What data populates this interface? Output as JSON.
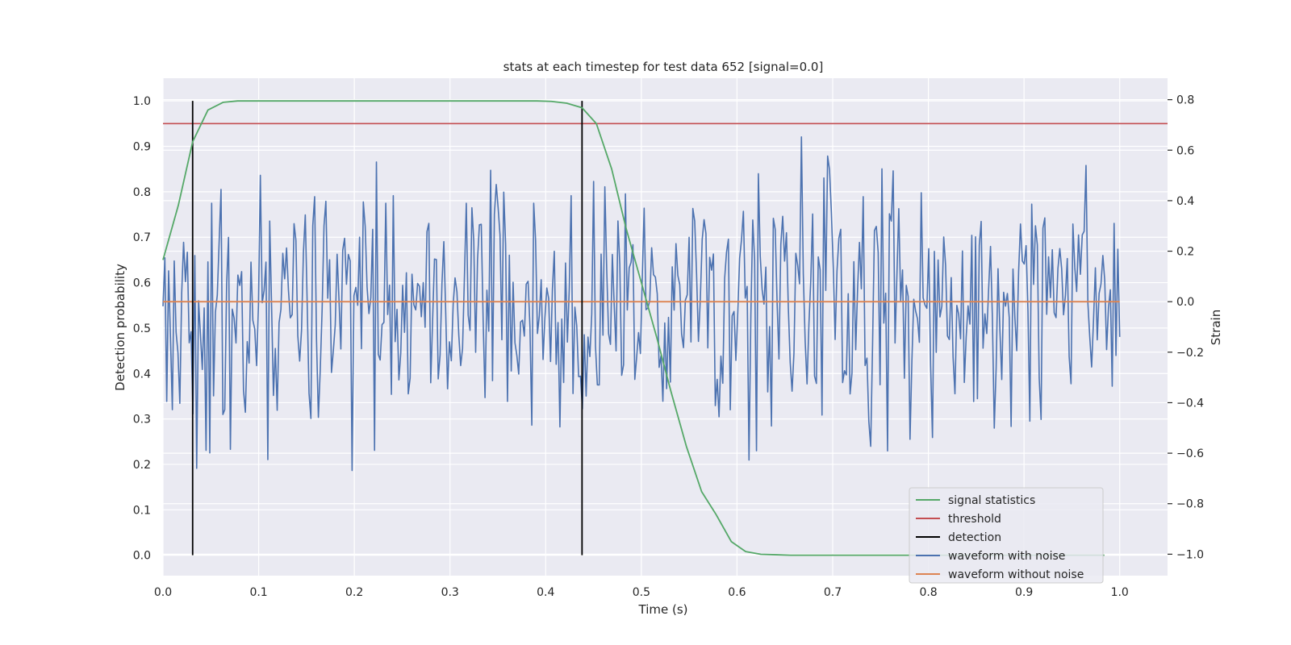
{
  "chart_data": {
    "type": "line",
    "title": "stats at each timestep for test data 652 [signal=0.0]",
    "xlabel": "Time (s)",
    "ylabel_left": "Detection probability",
    "ylabel_right": "Strain",
    "xlim": [
      0.0,
      1.05
    ],
    "ylim_left": [
      -0.045,
      1.05
    ],
    "ylim_right": [
      -1.085,
      0.885
    ],
    "x_ticks": [
      "0.0",
      "0.1",
      "0.2",
      "0.3",
      "0.4",
      "0.5",
      "0.6",
      "0.7",
      "0.8",
      "0.9",
      "1.0"
    ],
    "y_left_ticks": [
      "0.0",
      "0.1",
      "0.2",
      "0.3",
      "0.4",
      "0.5",
      "0.6",
      "0.7",
      "0.8",
      "0.9",
      "1.0"
    ],
    "y_right_ticks": [
      "−1.0",
      "−0.8",
      "−0.6",
      "−0.4",
      "−0.2",
      "0.0",
      "0.2",
      "0.4",
      "0.6",
      "0.8"
    ],
    "grid": true,
    "legend_position": "lower-right",
    "colors": {
      "background": "#eaeaf2",
      "grid": "#ffffff",
      "signal_statistics": "#55a868",
      "threshold": "#c44e52",
      "detection": "#000000",
      "waveform_with_noise": "#4c72b0",
      "waveform_without_noise": "#dd8452"
    },
    "series": [
      {
        "name": "signal statistics",
        "axis": "left",
        "x": [
          0.0,
          0.016,
          0.031,
          0.047,
          0.063,
          0.078,
          0.094,
          0.109,
          0.125,
          0.141,
          0.156,
          0.172,
          0.188,
          0.203,
          0.219,
          0.234,
          0.25,
          0.266,
          0.281,
          0.297,
          0.313,
          0.328,
          0.344,
          0.359,
          0.375,
          0.391,
          0.406,
          0.422,
          0.438,
          0.453,
          0.469,
          0.484,
          0.5,
          0.516,
          0.531,
          0.547,
          0.563,
          0.578,
          0.594,
          0.609,
          0.625,
          0.641,
          0.656,
          0.672,
          0.688,
          0.703,
          0.719,
          0.734,
          0.75,
          0.766,
          0.781,
          0.797,
          0.813,
          0.828,
          0.844,
          0.859,
          0.875,
          0.891,
          0.906,
          0.922,
          0.938,
          0.953,
          0.969,
          0.984
        ],
        "values": [
          0.65,
          0.77,
          0.91,
          0.98,
          0.997,
          1.0,
          1.0,
          1.0,
          1.0,
          1.0,
          1.0,
          1.0,
          1.0,
          1.0,
          1.0,
          1.0,
          1.0,
          1.0,
          1.0,
          1.0,
          1.0,
          1.0,
          1.0,
          1.0,
          1.0,
          1.0,
          0.999,
          0.995,
          0.985,
          0.95,
          0.85,
          0.72,
          0.6,
          0.48,
          0.36,
          0.24,
          0.14,
          0.09,
          0.03,
          0.008,
          0.002,
          0.001,
          0.0,
          0.0,
          0.0,
          0.0,
          0.0,
          0.0,
          0.0,
          0.0,
          0.0,
          0.0,
          0.0,
          0.0,
          0.0,
          0.0,
          0.0,
          0.0,
          0.0,
          0.0,
          0.0,
          0.0,
          0.0,
          0.0
        ]
      },
      {
        "name": "threshold",
        "axis": "left",
        "x": [
          0.0,
          1.05
        ],
        "values": [
          0.95,
          0.95
        ]
      },
      {
        "name": "detection",
        "axis": "left",
        "x": [
          0.031,
          0.438
        ],
        "y_range": [
          0.0,
          1.0
        ]
      },
      {
        "name": "waveform with noise",
        "axis": "right",
        "x_range": [
          0.0,
          1.0
        ],
        "samples": 512,
        "noise_range": [
          -1.0,
          0.8
        ],
        "seed": 652
      },
      {
        "name": "waveform without noise",
        "axis": "right",
        "x": [
          0.0,
          1.0
        ],
        "values": [
          0.0,
          0.0
        ]
      }
    ]
  }
}
